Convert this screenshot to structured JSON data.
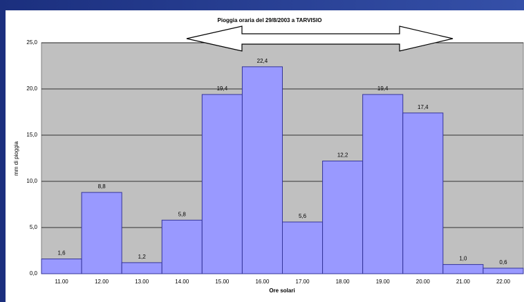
{
  "chart_data": {
    "type": "bar",
    "title": "Pioggia oraria del 29/8/2003 a TARVISIO",
    "ylabel": "mm di pioggia",
    "xlabel": "Ore solari",
    "categories": [
      "11.00",
      "12.00",
      "13.00",
      "14.00",
      "15.00",
      "16.00",
      "17.00",
      "18.00",
      "19.00",
      "20.00",
      "21.00",
      "22.00"
    ],
    "values": [
      1.6,
      8.8,
      1.2,
      5.8,
      19.4,
      22.4,
      5.6,
      12.2,
      19.4,
      17.4,
      1.0,
      0.6
    ],
    "value_labels": [
      "1,6",
      "8,8",
      "1,2",
      "5,8",
      "19,4",
      "22,4",
      "5,6",
      "12,2",
      "19,4",
      "17,4",
      "1,0",
      "0,6"
    ],
    "color": "#9999ff",
    "ylim": [
      0,
      25
    ],
    "yticks": [
      {
        "value": 0,
        "label": "0,0"
      },
      {
        "value": 5,
        "label": "5,0"
      },
      {
        "value": 10,
        "label": "10,0"
      },
      {
        "value": 15,
        "label": "15,0"
      },
      {
        "value": 20,
        "label": "20,0"
      },
      {
        "value": 25,
        "label": "25,0"
      }
    ],
    "grid": true
  }
}
